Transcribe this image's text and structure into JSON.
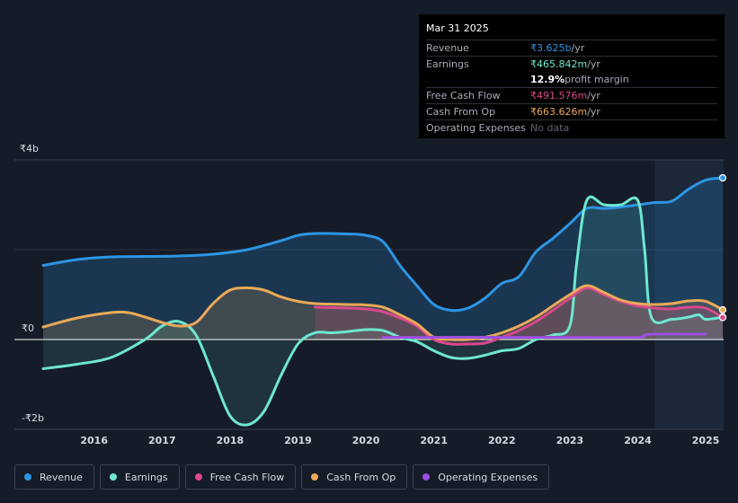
{
  "tooltip": {
    "date": "Mar 31 2025",
    "rows": [
      {
        "label": "Revenue",
        "value": "₹3.625b",
        "unit": " /yr",
        "color": "#2d95e4"
      },
      {
        "label": "Earnings",
        "value": "₹465.842m",
        "unit": " /yr",
        "color": "#6ee7d0"
      },
      {
        "label": "",
        "value": "12.9%",
        "unit": " profit margin",
        "color": "#ffffff"
      },
      {
        "label": "Free Cash Flow",
        "value": "₹491.576m",
        "unit": " /yr",
        "color": "#d9498a"
      },
      {
        "label": "Cash From Op",
        "value": "₹663.626m",
        "unit": " /yr",
        "color": "#e9a958"
      },
      {
        "label": "Operating Expenses",
        "value": "No data",
        "unit": "",
        "color": "#5f6470"
      }
    ]
  },
  "legend": [
    {
      "label": "Revenue",
      "color": "#2d95e4"
    },
    {
      "label": "Earnings",
      "color": "#6ee7d0"
    },
    {
      "label": "Free Cash Flow",
      "color": "#d9498a"
    },
    {
      "label": "Cash From Op",
      "color": "#e9a958"
    },
    {
      "label": "Operating Expenses",
      "color": "#9b4fe0"
    }
  ],
  "chart_data": {
    "type": "line",
    "title": "",
    "unit": "₹",
    "y_tick_labels": [
      "₹4b",
      "₹0",
      "-₹2b"
    ],
    "y_ticks": [
      4,
      0,
      -2
    ],
    "ylim": [
      -2,
      4
    ],
    "x_tick_labels": [
      "2016",
      "2017",
      "2018",
      "2019",
      "2020",
      "2021",
      "2022",
      "2023",
      "2024",
      "2025"
    ],
    "x_ticks": [
      2016,
      2017,
      2018,
      2019,
      2020,
      2021,
      2022,
      2023,
      2024,
      2025
    ],
    "xlim": [
      2015.25,
      2025.25
    ],
    "forecast_start": 2024.25,
    "series": [
      {
        "name": "Revenue",
        "color": "#2d95e4",
        "points": [
          [
            2015.25,
            1.65
          ],
          [
            2015.75,
            1.78
          ],
          [
            2016.25,
            1.84
          ],
          [
            2016.75,
            1.85
          ],
          [
            2017.25,
            1.86
          ],
          [
            2017.75,
            1.9
          ],
          [
            2018.25,
            2.0
          ],
          [
            2018.75,
            2.2
          ],
          [
            2019.0,
            2.32
          ],
          [
            2019.25,
            2.36
          ],
          [
            2019.75,
            2.35
          ],
          [
            2020.0,
            2.32
          ],
          [
            2020.25,
            2.18
          ],
          [
            2020.5,
            1.65
          ],
          [
            2020.75,
            1.2
          ],
          [
            2021.0,
            0.78
          ],
          [
            2021.25,
            0.65
          ],
          [
            2021.5,
            0.7
          ],
          [
            2021.75,
            0.92
          ],
          [
            2022.0,
            1.25
          ],
          [
            2022.25,
            1.4
          ],
          [
            2022.5,
            1.95
          ],
          [
            2022.75,
            2.25
          ],
          [
            2023.0,
            2.58
          ],
          [
            2023.25,
            2.92
          ],
          [
            2023.5,
            2.92
          ],
          [
            2023.75,
            2.95
          ],
          [
            2024.0,
            3.0
          ],
          [
            2024.25,
            3.05
          ],
          [
            2024.5,
            3.08
          ],
          [
            2024.75,
            3.35
          ],
          [
            2025.0,
            3.55
          ],
          [
            2025.25,
            3.6
          ]
        ]
      },
      {
        "name": "Earnings",
        "color": "#6ee7d0",
        "points": [
          [
            2015.25,
            -0.65
          ],
          [
            2015.75,
            -0.55
          ],
          [
            2016.25,
            -0.4
          ],
          [
            2016.75,
            0.0
          ],
          [
            2017.0,
            0.3
          ],
          [
            2017.25,
            0.4
          ],
          [
            2017.5,
            0.1
          ],
          [
            2017.75,
            -0.8
          ],
          [
            2018.0,
            -1.7
          ],
          [
            2018.25,
            -1.9
          ],
          [
            2018.5,
            -1.6
          ],
          [
            2018.75,
            -0.8
          ],
          [
            2019.0,
            -0.1
          ],
          [
            2019.25,
            0.15
          ],
          [
            2019.5,
            0.15
          ],
          [
            2019.75,
            0.18
          ],
          [
            2020.0,
            0.22
          ],
          [
            2020.25,
            0.2
          ],
          [
            2020.5,
            0.05
          ],
          [
            2020.75,
            -0.05
          ],
          [
            2021.0,
            -0.25
          ],
          [
            2021.25,
            -0.4
          ],
          [
            2021.5,
            -0.42
          ],
          [
            2021.75,
            -0.35
          ],
          [
            2022.0,
            -0.25
          ],
          [
            2022.25,
            -0.2
          ],
          [
            2022.5,
            0.0
          ],
          [
            2022.75,
            0.1
          ],
          [
            2023.0,
            0.3
          ],
          [
            2023.1,
            1.7
          ],
          [
            2023.25,
            3.1
          ],
          [
            2023.5,
            3.0
          ],
          [
            2023.75,
            3.0
          ],
          [
            2024.0,
            3.1
          ],
          [
            2024.1,
            2.0
          ],
          [
            2024.2,
            0.5
          ],
          [
            2024.5,
            0.45
          ],
          [
            2024.75,
            0.5
          ],
          [
            2024.9,
            0.55
          ],
          [
            2025.0,
            0.45
          ],
          [
            2025.25,
            0.5
          ]
        ]
      },
      {
        "name": "Free Cash Flow",
        "color": "#d9498a",
        "points": [
          [
            2019.25,
            0.72
          ],
          [
            2019.75,
            0.7
          ],
          [
            2020.0,
            0.68
          ],
          [
            2020.25,
            0.62
          ],
          [
            2020.5,
            0.48
          ],
          [
            2020.75,
            0.3
          ],
          [
            2021.0,
            0.0
          ],
          [
            2021.25,
            -0.1
          ],
          [
            2021.5,
            -0.1
          ],
          [
            2021.75,
            -0.08
          ],
          [
            2022.0,
            0.05
          ],
          [
            2022.25,
            0.2
          ],
          [
            2022.5,
            0.4
          ],
          [
            2022.75,
            0.65
          ],
          [
            2023.0,
            0.92
          ],
          [
            2023.25,
            1.15
          ],
          [
            2023.5,
            1.0
          ],
          [
            2023.75,
            0.85
          ],
          [
            2024.0,
            0.75
          ],
          [
            2024.25,
            0.7
          ],
          [
            2024.5,
            0.68
          ],
          [
            2024.75,
            0.72
          ],
          [
            2025.0,
            0.7
          ],
          [
            2025.25,
            0.49
          ]
        ]
      },
      {
        "name": "Cash From Op",
        "color": "#e9a958",
        "points": [
          [
            2015.25,
            0.28
          ],
          [
            2015.75,
            0.48
          ],
          [
            2016.25,
            0.6
          ],
          [
            2016.5,
            0.6
          ],
          [
            2016.75,
            0.5
          ],
          [
            2017.0,
            0.38
          ],
          [
            2017.25,
            0.3
          ],
          [
            2017.5,
            0.38
          ],
          [
            2017.75,
            0.8
          ],
          [
            2018.0,
            1.1
          ],
          [
            2018.25,
            1.15
          ],
          [
            2018.5,
            1.1
          ],
          [
            2018.75,
            0.95
          ],
          [
            2019.0,
            0.85
          ],
          [
            2019.25,
            0.8
          ],
          [
            2019.75,
            0.78
          ],
          [
            2020.0,
            0.77
          ],
          [
            2020.25,
            0.72
          ],
          [
            2020.5,
            0.55
          ],
          [
            2020.75,
            0.35
          ],
          [
            2021.0,
            0.05
          ],
          [
            2021.25,
            0.0
          ],
          [
            2021.5,
            0.0
          ],
          [
            2021.75,
            0.05
          ],
          [
            2022.0,
            0.15
          ],
          [
            2022.25,
            0.3
          ],
          [
            2022.5,
            0.5
          ],
          [
            2022.75,
            0.75
          ],
          [
            2023.0,
            1.0
          ],
          [
            2023.25,
            1.2
          ],
          [
            2023.5,
            1.05
          ],
          [
            2023.75,
            0.88
          ],
          [
            2024.0,
            0.8
          ],
          [
            2024.25,
            0.78
          ],
          [
            2024.5,
            0.8
          ],
          [
            2024.75,
            0.86
          ],
          [
            2025.0,
            0.85
          ],
          [
            2025.25,
            0.66
          ]
        ]
      },
      {
        "name": "Operating Expenses",
        "color": "#9b4fe0",
        "points": [
          [
            2020.25,
            0.05
          ],
          [
            2021.0,
            0.05
          ],
          [
            2022.0,
            0.05
          ],
          [
            2023.0,
            0.05
          ],
          [
            2024.0,
            0.05
          ],
          [
            2024.1,
            0.1
          ],
          [
            2024.25,
            0.12
          ],
          [
            2025.0,
            0.12
          ]
        ]
      }
    ]
  }
}
